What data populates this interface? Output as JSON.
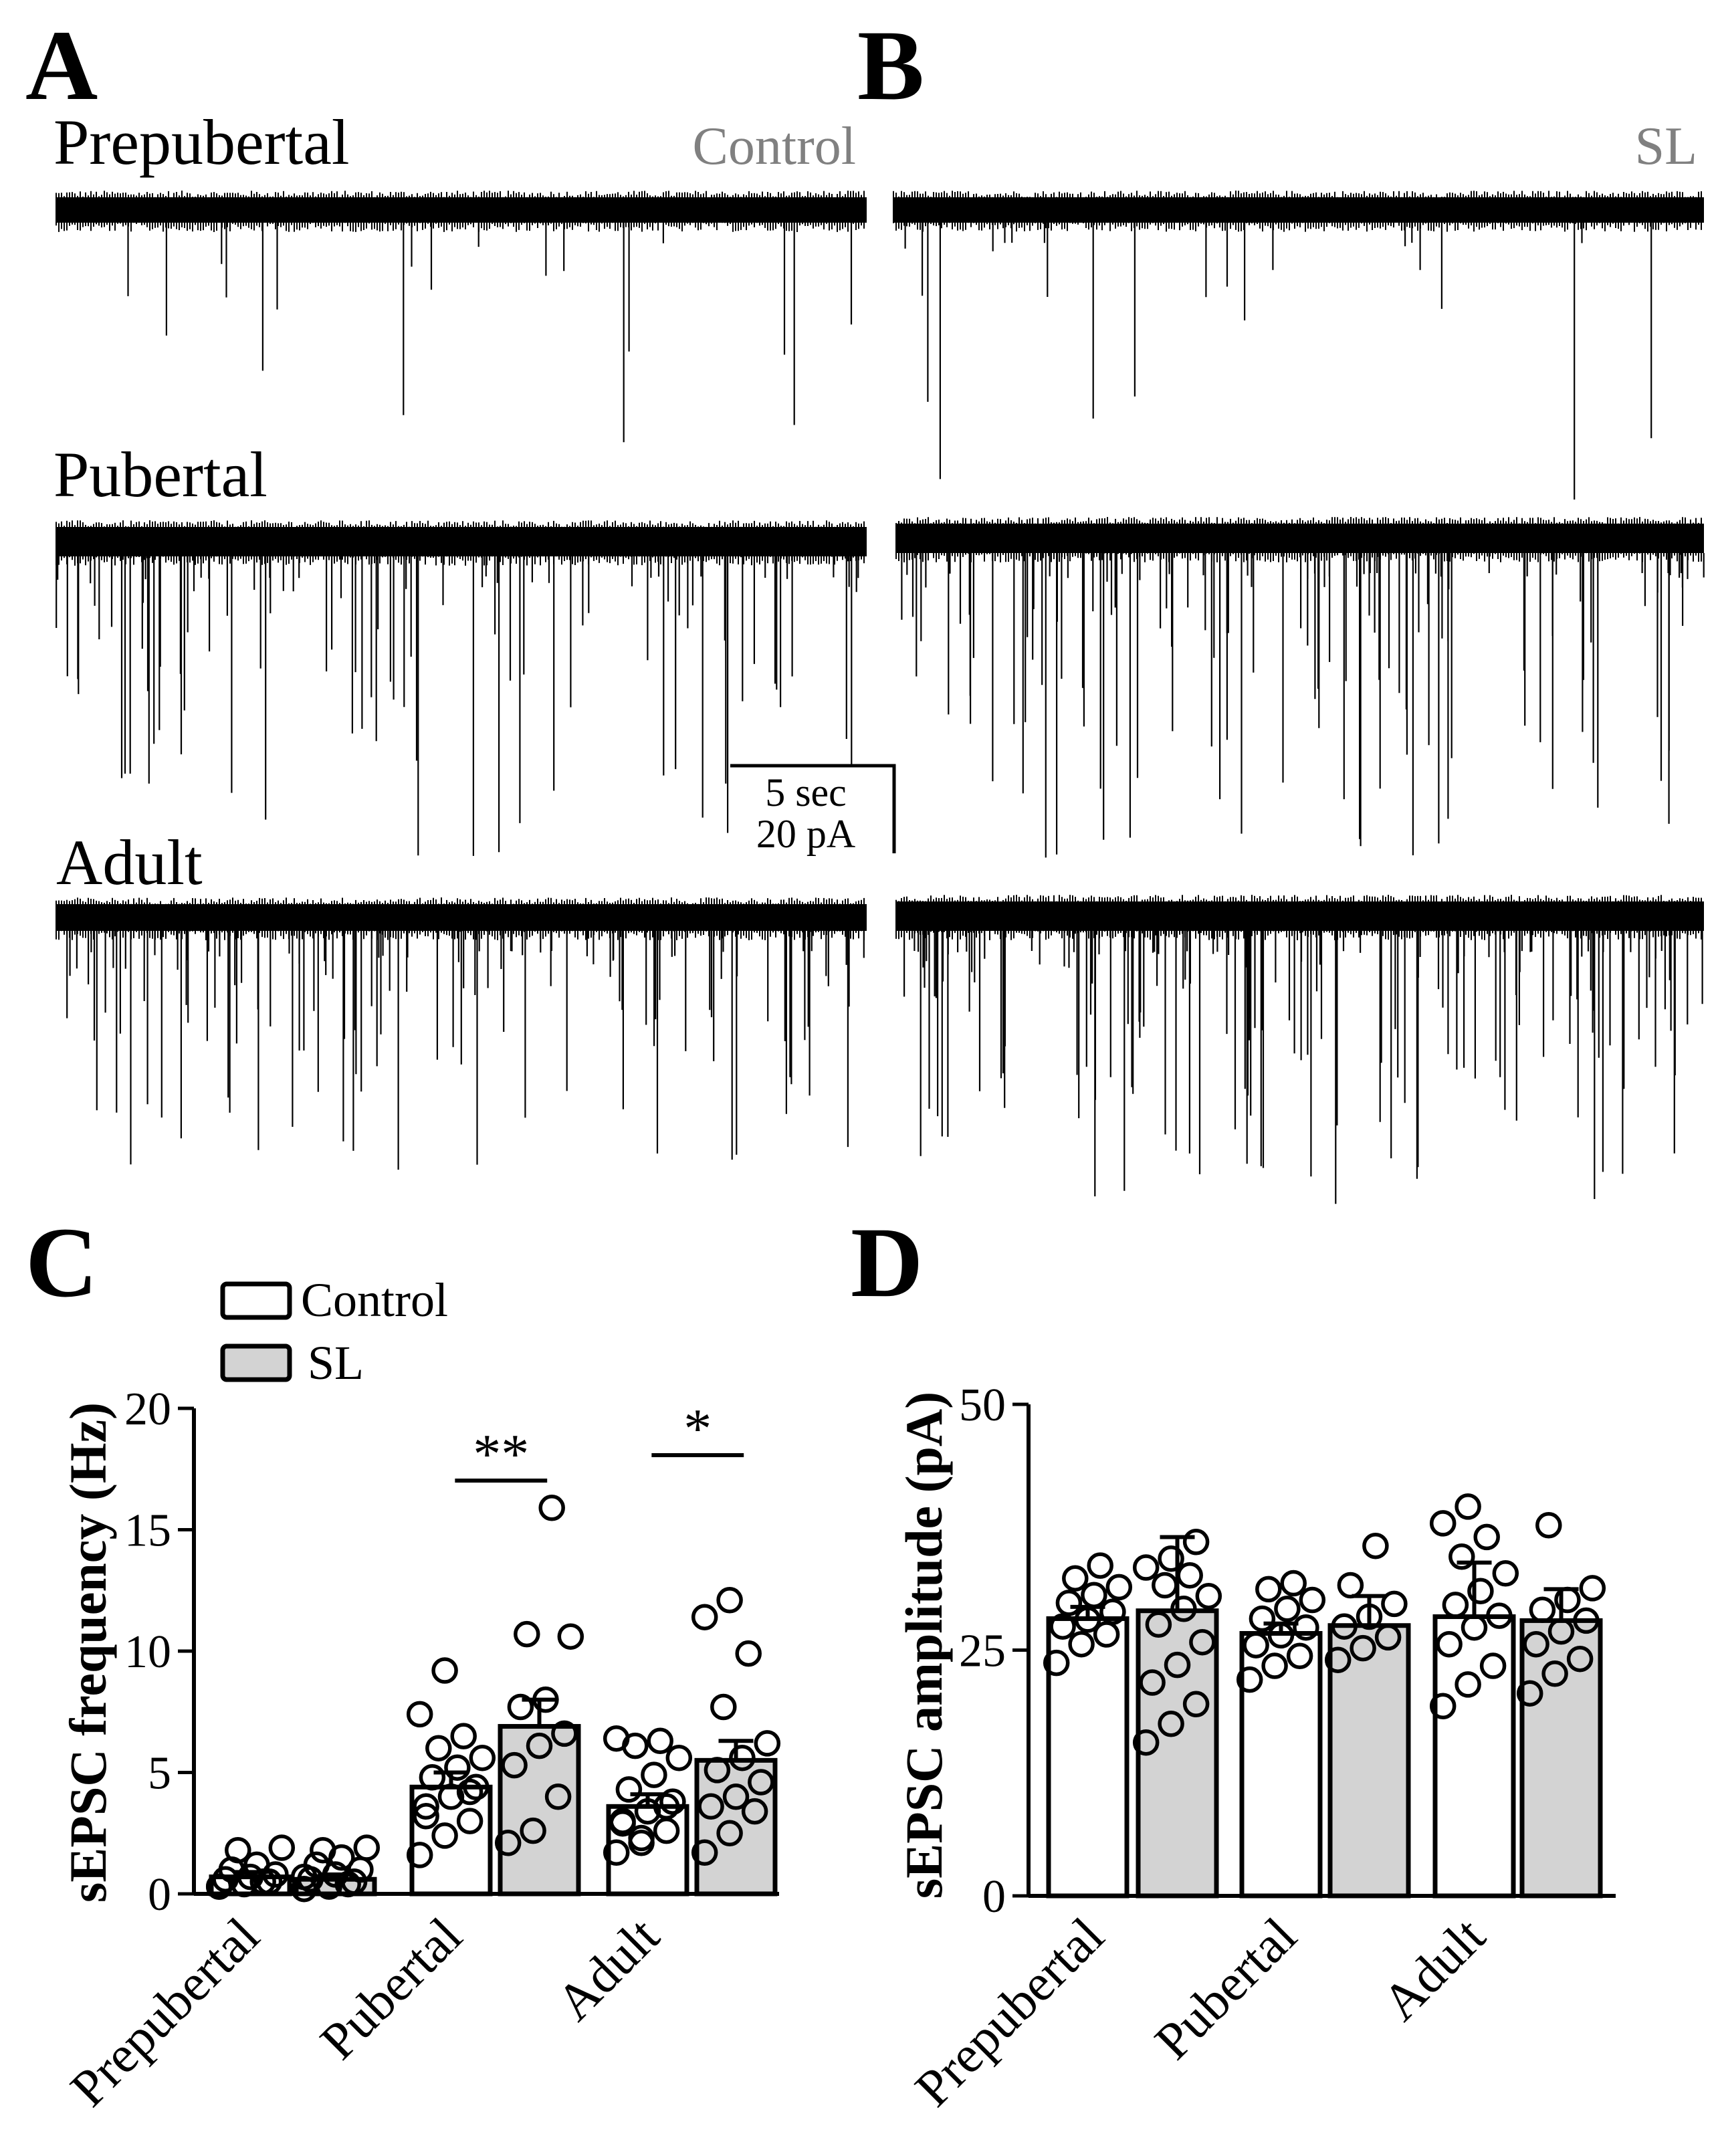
{
  "panels": {
    "A": "A",
    "B": "B",
    "C": "C",
    "D": "D"
  },
  "traces": {
    "condition_labels": [
      "Control",
      "SL"
    ],
    "row_labels": [
      "Prepubertal",
      "Pubertal",
      "Adult"
    ],
    "scalebar_time": "5 sec",
    "scalebar_current": "20 pA",
    "event_rates": {
      "Prepubertal": {
        "Control": 18,
        "SL": 22
      },
      "Pubertal": {
        "Control": 100,
        "SL": 130
      },
      "Adult": {
        "Control": 120,
        "SL": 160
      }
    }
  },
  "legend": {
    "control_label": "Control",
    "sl_label": "SL"
  },
  "colors": {
    "control_fill": "#ffffff",
    "sl_fill": "#d3d3d3",
    "trace": "#000000",
    "condition_text": "#808080"
  },
  "chart_data": [
    {
      "type": "bar",
      "panel": "C",
      "ylabel": "sEPSC frequency (Hz)",
      "ylim": [
        0,
        20
      ],
      "yticks": [
        0,
        5,
        10,
        15,
        20
      ],
      "categories": [
        "Prepubertal",
        "Pubertal",
        "Adult"
      ],
      "series": [
        {
          "name": "Control",
          "values": [
            0.7,
            4.4,
            3.6
          ],
          "sem": [
            0.2,
            0.6,
            0.5
          ]
        },
        {
          "name": "SL",
          "values": [
            0.6,
            6.9,
            5.5
          ],
          "sem": [
            0.2,
            1.1,
            0.8
          ]
        }
      ],
      "points": {
        "Control": [
          [
            0.3,
            0.4,
            0.5,
            0.6,
            0.7,
            0.8,
            1.0,
            1.2,
            1.9,
            1.8,
            0.5,
            0.3
          ],
          [
            1.6,
            2.4,
            3.0,
            3.6,
            4.0,
            4.4,
            4.8,
            5.2,
            5.6,
            6.0,
            6.5,
            7.4,
            9.2,
            4.2,
            3.2
          ],
          [
            1.7,
            2.3,
            2.6,
            3.0,
            3.4,
            3.8,
            4.3,
            4.9,
            5.6,
            6.1,
            6.3,
            6.4,
            2.1,
            3.6,
            2.9
          ]
        ],
        "SL": [
          [
            0.2,
            0.3,
            0.5,
            0.6,
            0.8,
            1.0,
            1.2,
            1.5,
            1.9,
            1.8,
            0.4,
            0.7
          ],
          [
            2.1,
            2.6,
            4.0,
            5.3,
            6.1,
            6.6,
            7.7,
            8.0,
            10.6,
            10.7,
            15.9
          ],
          [
            1.7,
            2.5,
            3.4,
            3.6,
            4.0,
            4.6,
            5.1,
            5.6,
            6.2,
            7.7,
            9.9,
            11.4,
            12.1
          ]
        ]
      },
      "significance": [
        {
          "category": "Pubertal",
          "label": "**"
        },
        {
          "category": "Adult",
          "label": "*"
        }
      ]
    },
    {
      "type": "bar",
      "panel": "D",
      "ylabel": "sEPSC amplitude (pA)",
      "ylim": [
        0,
        50
      ],
      "yticks": [
        0,
        25,
        50
      ],
      "categories": [
        "Prepubertal",
        "Pubertal",
        "Adult"
      ],
      "series": [
        {
          "name": "Control",
          "values": [
            28.2,
            26.7,
            28.4
          ],
          "sem": [
            1.2,
            1.0,
            5.5
          ]
        },
        {
          "name": "SL",
          "values": [
            29.0,
            27.5,
            28.0
          ],
          "sem": [
            7.5,
            3.0,
            3.2
          ]
        }
      ],
      "points": {
        "Control": [
          [
            23.7,
            25.6,
            26.6,
            27.4,
            28.1,
            28.9,
            29.8,
            30.6,
            31.4,
            32.3,
            33.6
          ],
          [
            22.0,
            23.4,
            24.4,
            25.5,
            26.5,
            27.3,
            28.2,
            29.2,
            30.1,
            31.2,
            31.8
          ],
          [
            19.3,
            21.5,
            23.4,
            25.6,
            27.3,
            28.5,
            29.6,
            31.0,
            32.8,
            34.5,
            36.5,
            37.9,
            39.6
          ]
        ],
        "SL": [
          [
            15.6,
            17.5,
            19.5,
            21.7,
            23.5,
            25.8,
            27.6,
            29.2,
            30.5,
            31.6,
            32.6,
            33.4,
            34.3,
            36.0
          ],
          [
            24.0,
            25.2,
            26.3,
            27.4,
            28.4,
            29.7,
            31.6,
            35.6
          ],
          [
            20.6,
            22.6,
            24.1,
            25.6,
            26.9,
            28.0,
            29.1,
            30.1,
            31.3,
            37.7
          ]
        ]
      }
    }
  ]
}
